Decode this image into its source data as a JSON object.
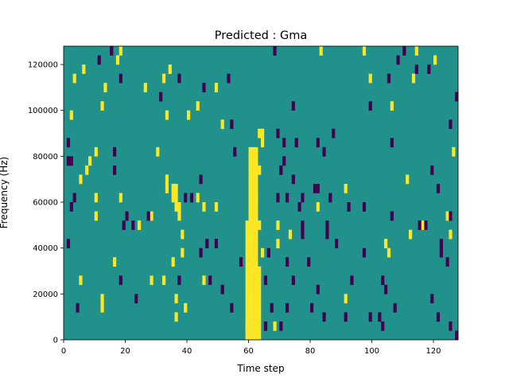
{
  "chart_data": {
    "type": "heatmap",
    "title": "Predicted : Gma",
    "xlabel": "Time step",
    "ylabel": "Frequency (Hz)",
    "xlim": [
      0,
      128
    ],
    "ylim": [
      0,
      128000
    ],
    "n_time_steps": 128,
    "n_freq_bins": 32,
    "freq_bin_hz": 4000,
    "xticks": [
      "0",
      "20",
      "40",
      "60",
      "80",
      "100",
      "120"
    ],
    "xtick_values": [
      0,
      20,
      40,
      60,
      80,
      100,
      120
    ],
    "yticks": [
      "0",
      "20000",
      "40000",
      "60000",
      "80000",
      "100000",
      "120000"
    ],
    "ytick_values": [
      0,
      20000,
      40000,
      60000,
      80000,
      100000,
      120000
    ],
    "colors": {
      "low": "#440154",
      "mid": "#21918c",
      "high": "#fde725"
    },
    "background_value": "mid",
    "high_band": [
      {
        "t_start": 59,
        "t_end": 63,
        "bin_start": 0,
        "bin_end": 6
      },
      {
        "t_start": 59,
        "t_end": 62,
        "bin_start": 7,
        "bin_end": 12
      },
      {
        "t_start": 60,
        "t_end": 62,
        "bin_start": 13,
        "bin_end": 20
      },
      {
        "t_start": 63,
        "t_end": 64,
        "bin_start": 22,
        "bin_end": 22
      }
    ],
    "high_cells": [
      [
        18,
        31
      ],
      [
        83,
        31
      ],
      [
        97,
        31
      ],
      [
        114,
        31
      ],
      [
        17,
        30
      ],
      [
        120,
        30
      ],
      [
        6,
        29
      ],
      [
        34,
        29
      ],
      [
        3,
        28
      ],
      [
        32,
        28
      ],
      [
        99,
        28
      ],
      [
        113,
        28
      ],
      [
        13,
        27
      ],
      [
        26,
        27
      ],
      [
        49,
        27
      ],
      [
        12,
        25
      ],
      [
        43,
        25
      ],
      [
        106,
        25
      ],
      [
        2,
        24
      ],
      [
        40,
        24
      ],
      [
        33,
        24
      ],
      [
        51,
        23
      ],
      [
        10,
        20
      ],
      [
        30,
        20
      ],
      [
        126,
        20
      ],
      [
        8,
        19
      ],
      [
        7,
        18
      ],
      [
        5,
        17
      ],
      [
        33,
        17
      ],
      [
        111,
        17
      ],
      [
        33,
        16
      ],
      [
        91,
        16
      ],
      [
        35,
        16
      ],
      [
        36,
        16
      ],
      [
        35,
        15
      ],
      [
        36,
        15
      ],
      [
        37,
        14
      ],
      [
        36,
        14
      ],
      [
        10,
        15
      ],
      [
        43,
        15
      ],
      [
        18,
        15
      ],
      [
        45,
        14
      ],
      [
        82,
        14
      ],
      [
        49,
        14
      ],
      [
        10,
        13
      ],
      [
        28,
        13
      ],
      [
        37,
        13
      ],
      [
        124,
        13
      ],
      [
        24,
        12
      ],
      [
        69,
        12
      ],
      [
        116,
        12
      ],
      [
        38,
        11
      ],
      [
        73,
        11
      ],
      [
        112,
        11
      ],
      [
        125,
        11
      ],
      [
        69,
        10
      ],
      [
        104,
        10
      ],
      [
        38,
        9
      ],
      [
        105,
        9
      ],
      [
        16,
        8
      ],
      [
        35,
        8
      ],
      [
        5,
        6
      ],
      [
        28,
        6
      ],
      [
        32,
        6
      ],
      [
        45,
        6
      ],
      [
        12,
        4
      ],
      [
        36,
        4
      ],
      [
        91,
        4
      ],
      [
        12,
        3
      ],
      [
        39,
        3
      ],
      [
        36,
        2
      ],
      [
        59,
        1
      ],
      [
        68,
        1
      ],
      [
        64,
        21
      ],
      [
        63,
        18
      ],
      [
        62,
        15
      ],
      [
        63,
        12
      ],
      [
        64,
        9
      ],
      [
        63,
        7
      ]
    ],
    "low_cells": [
      [
        15,
        31
      ],
      [
        68,
        31
      ],
      [
        110,
        31
      ],
      [
        11,
        30
      ],
      [
        108,
        30
      ],
      [
        114,
        29
      ],
      [
        118,
        29
      ],
      [
        18,
        28
      ],
      [
        37,
        28
      ],
      [
        53,
        28
      ],
      [
        105,
        28
      ],
      [
        45,
        27
      ],
      [
        31,
        26
      ],
      [
        127,
        26
      ],
      [
        74,
        25
      ],
      [
        99,
        25
      ],
      [
        54,
        23
      ],
      [
        125,
        23
      ],
      [
        69,
        22
      ],
      [
        87,
        22
      ],
      [
        1,
        21
      ],
      [
        71,
        21
      ],
      [
        75,
        21
      ],
      [
        82,
        21
      ],
      [
        106,
        21
      ],
      [
        16,
        20
      ],
      [
        55,
        20
      ],
      [
        84,
        20
      ],
      [
        1,
        19
      ],
      [
        2,
        19
      ],
      [
        71,
        19
      ],
      [
        16,
        18
      ],
      [
        70,
        18
      ],
      [
        119,
        18
      ],
      [
        44,
        17
      ],
      [
        74,
        17
      ],
      [
        81,
        16
      ],
      [
        82,
        16
      ],
      [
        121,
        16
      ],
      [
        3,
        15
      ],
      [
        39,
        15
      ],
      [
        41,
        15
      ],
      [
        69,
        15
      ],
      [
        72,
        15
      ],
      [
        77,
        15
      ],
      [
        86,
        15
      ],
      [
        2,
        14
      ],
      [
        76,
        14
      ],
      [
        92,
        14
      ],
      [
        97,
        14
      ],
      [
        20,
        13
      ],
      [
        27,
        13
      ],
      [
        106,
        13
      ],
      [
        125,
        13
      ],
      [
        19,
        12
      ],
      [
        22,
        12
      ],
      [
        77,
        12
      ],
      [
        85,
        12
      ],
      [
        115,
        12
      ],
      [
        117,
        12
      ],
      [
        77,
        11
      ],
      [
        85,
        11
      ],
      [
        1,
        10
      ],
      [
        46,
        10
      ],
      [
        49,
        10
      ],
      [
        88,
        10
      ],
      [
        122,
        10
      ],
      [
        44,
        9
      ],
      [
        66,
        9
      ],
      [
        97,
        9
      ],
      [
        122,
        9
      ],
      [
        57,
        8
      ],
      [
        72,
        8
      ],
      [
        79,
        8
      ],
      [
        124,
        8
      ],
      [
        18,
        6
      ],
      [
        37,
        6
      ],
      [
        47,
        6
      ],
      [
        65,
        6
      ],
      [
        74,
        6
      ],
      [
        93,
        6
      ],
      [
        103,
        6
      ],
      [
        51,
        5
      ],
      [
        82,
        5
      ],
      [
        104,
        5
      ],
      [
        23,
        4
      ],
      [
        119,
        4
      ],
      [
        4,
        3
      ],
      [
        54,
        3
      ],
      [
        67,
        3
      ],
      [
        72,
        3
      ],
      [
        80,
        3
      ],
      [
        107,
        3
      ],
      [
        84,
        2
      ],
      [
        91,
        2
      ],
      [
        99,
        2
      ],
      [
        102,
        2
      ],
      [
        121,
        2
      ],
      [
        65,
        1
      ],
      [
        70,
        1
      ],
      [
        103,
        1
      ],
      [
        125,
        1
      ],
      [
        127,
        0
      ]
    ]
  }
}
